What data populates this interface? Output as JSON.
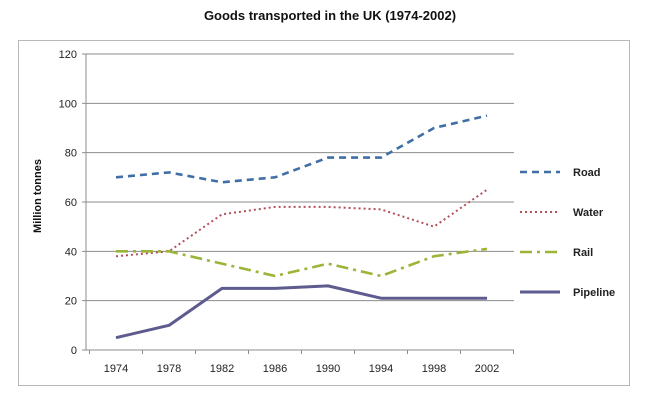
{
  "chart_data": {
    "type": "line",
    "title": "Goods transported in the UK (1974-2002)",
    "xlabel": "",
    "ylabel": "Million tonnes",
    "x": [
      "1974",
      "1978",
      "1982",
      "1986",
      "1990",
      "1994",
      "1998",
      "2002"
    ],
    "ylim": [
      0,
      120
    ],
    "yticks": [
      0,
      20,
      40,
      60,
      80,
      100,
      120
    ],
    "grid": true,
    "legend_position": "right",
    "series": [
      {
        "name": "Road",
        "color": "#3f6fa6",
        "style": "dashed",
        "values": [
          70,
          72,
          68,
          70,
          78,
          78,
          90,
          95
        ]
      },
      {
        "name": "Water",
        "color": "#b2505a",
        "style": "dotted",
        "values": [
          38,
          40,
          55,
          58,
          58,
          57,
          50,
          65
        ]
      },
      {
        "name": "Rail",
        "color": "#9bb536",
        "style": "dashdot",
        "values": [
          40,
          40,
          35,
          30,
          35,
          30,
          38,
          41
        ]
      },
      {
        "name": "Pipeline",
        "color": "#5e5b8f",
        "style": "solid",
        "values": [
          5,
          10,
          25,
          25,
          26,
          21,
          21,
          21
        ]
      }
    ]
  }
}
